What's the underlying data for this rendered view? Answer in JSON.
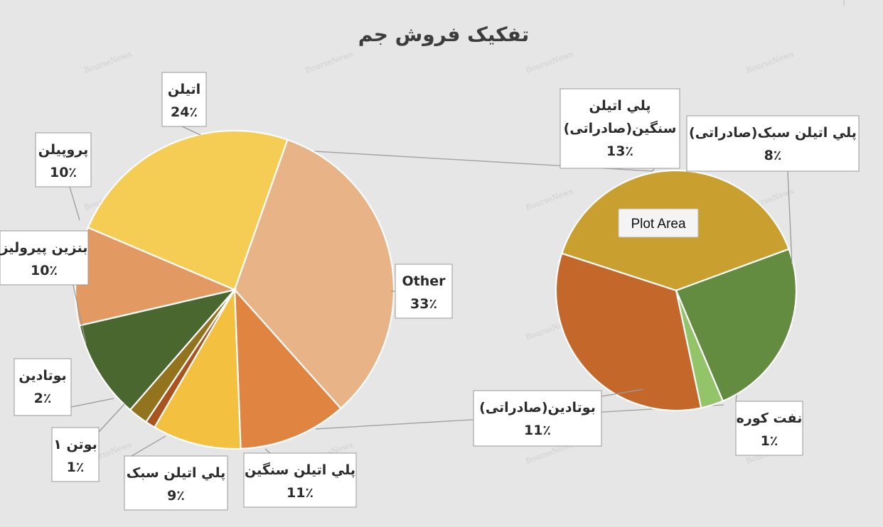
{
  "title": "تفکیک فروش جم",
  "watermark": "BourseNews",
  "tooltip": "Plot Area",
  "chart_data": {
    "type": "pie",
    "title": "تفکیک فروش جم",
    "main_pie": {
      "slices": [
        {
          "name": "اتيلن",
          "value": 24,
          "label": "24٪",
          "color": "#f5cd55"
        },
        {
          "name": "Other",
          "value": 33,
          "label": "33٪",
          "color": "#e9b388"
        },
        {
          "name": "پلي اتيلن سنگين",
          "value": 11,
          "label": "11٪",
          "color": "#e08442"
        },
        {
          "name": "پلي اتيلن سبک",
          "value": 9,
          "label": "9٪",
          "color": "#f4c03f"
        },
        {
          "name": "بوتن ۱",
          "value": 1,
          "label": "1٪",
          "color": "#a9531f"
        },
        {
          "name": "بوتادين",
          "value": 2,
          "label": "2٪",
          "color": "#92741e"
        },
        {
          "name": "بنزين پيروليز",
          "value": 10,
          "label": "10٪",
          "color": "#4b6730"
        },
        {
          "name": "پروپيلن",
          "value": 10,
          "label": "10٪",
          "color": "#e39a62"
        }
      ]
    },
    "secondary_pie": {
      "slices": [
        {
          "name": "پلي اتيلن سنگين(صادراتی)",
          "value": 13,
          "label": "13٪",
          "color": "#c9a02f"
        },
        {
          "name": "پلي اتيلن سبک(صادراتی)",
          "value": 8,
          "label": "8٪",
          "color": "#648c40"
        },
        {
          "name": "نفت کوره",
          "value": 1,
          "label": "1٪",
          "color": "#94c46a"
        },
        {
          "name": "بوتادين(صادراتی)",
          "value": 11,
          "label": "11٪",
          "color": "#c4672b"
        }
      ]
    }
  }
}
